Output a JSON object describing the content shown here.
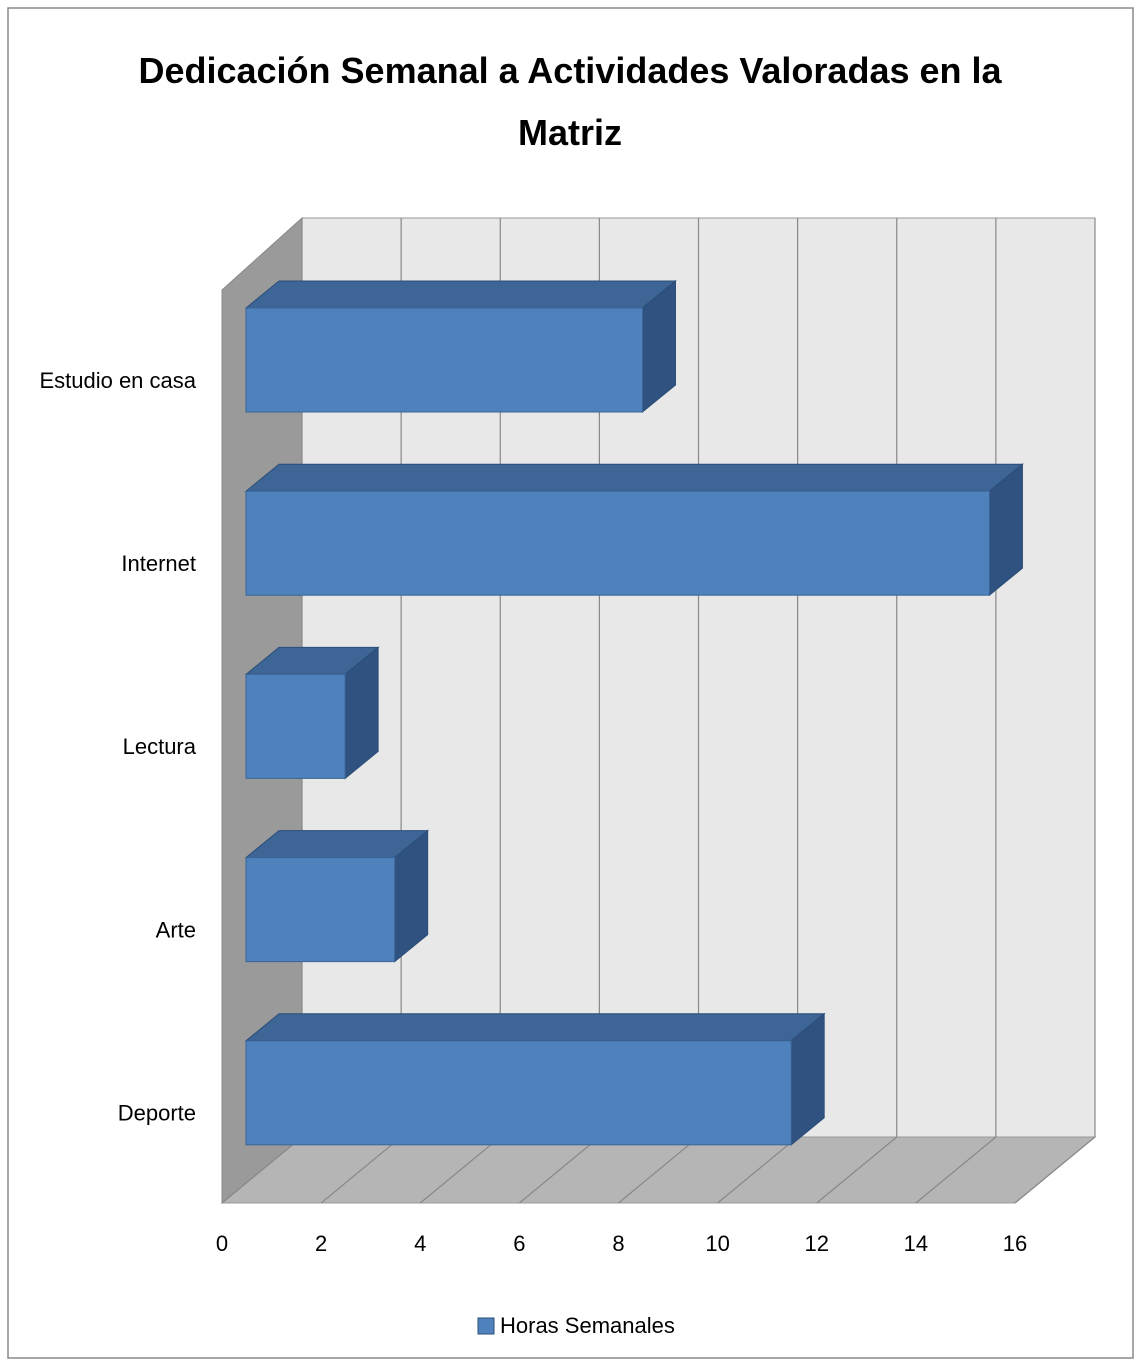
{
  "chart_data": {
    "type": "bar3d_horizontal",
    "title": "Dedicación Semanal a Actividades Valoradas en la Matriz",
    "categories": [
      "Estudio en casa",
      "Internet",
      "Lectura",
      "Arte",
      "Deporte"
    ],
    "series": [
      {
        "name": "Horas Semanales",
        "color": "#4f81bd",
        "values": [
          8,
          15,
          2,
          3,
          11
        ]
      }
    ],
    "xlim": [
      0,
      16
    ],
    "xticks": [
      0,
      2,
      4,
      6,
      8,
      10,
      12,
      14,
      16
    ],
    "grid": true,
    "legend": "bottom"
  }
}
